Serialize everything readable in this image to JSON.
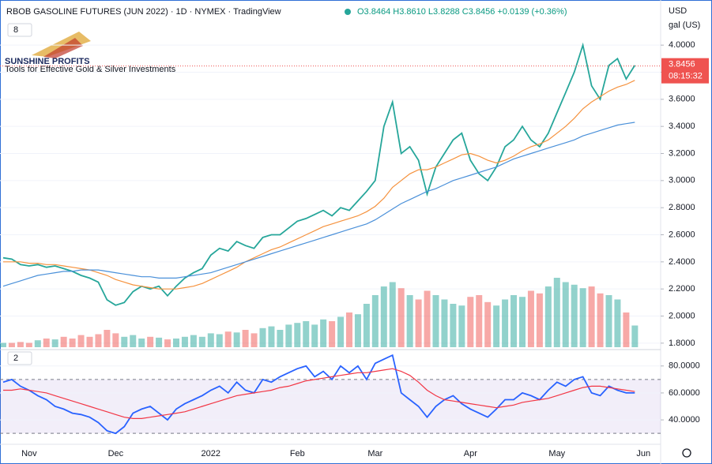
{
  "header": {
    "title": "RBOB GASOLINE FUTURES (JUN 2022) · 1D · NYMEX · TradingView",
    "quote": [
      {
        "value": 3.8464,
        "label": "O3.8464"
      },
      {
        "value": 3.861,
        "label": "H3.8610"
      },
      {
        "value": 3.8288,
        "label": "L3.8288"
      },
      {
        "value": 3.8456,
        "label": "C3.8456"
      },
      {
        "value": 0.0139,
        "label": "+0.0139"
      },
      {
        "value": 0.36,
        "label": "(+0.36%)"
      }
    ],
    "currency": "USD",
    "unit": "gal (US)",
    "logo": {
      "name": "SUNSHINE PROFITS",
      "tagline": "Tools for Effective Gold & Silver Investments"
    }
  },
  "chart_data": [
    {
      "type": "line",
      "indicator_count": 8,
      "categories": [
        null,
        null,
        null,
        "Nov",
        null,
        null,
        null,
        null,
        null,
        null,
        null,
        null,
        null,
        "Dec",
        null,
        null,
        null,
        null,
        null,
        null,
        null,
        null,
        null,
        null,
        "2022",
        null,
        null,
        null,
        null,
        null,
        null,
        null,
        null,
        null,
        "Feb",
        null,
        null,
        null,
        null,
        null,
        null,
        null,
        null,
        "Mar",
        null,
        null,
        null,
        null,
        null,
        null,
        null,
        null,
        null,
        null,
        "Apr",
        null,
        null,
        null,
        null,
        null,
        null,
        null,
        null,
        null,
        "May",
        null,
        null,
        null,
        null,
        null,
        null,
        null,
        null,
        null,
        "Jun"
      ],
      "series": [
        {
          "color": "#26a69a",
          "values": [
            2.43,
            2.42,
            2.38,
            2.37,
            2.38,
            2.36,
            2.37,
            2.35,
            2.33,
            2.3,
            2.28,
            2.25,
            2.12,
            2.08,
            2.1,
            2.18,
            2.22,
            2.2,
            2.22,
            2.15,
            2.22,
            2.28,
            2.32,
            2.35,
            2.45,
            2.5,
            2.48,
            2.55,
            2.52,
            2.5,
            2.58,
            2.6,
            2.6,
            2.65,
            2.7,
            2.72,
            2.75,
            2.78,
            2.74,
            2.8,
            2.78,
            2.85,
            2.92,
            3.0,
            3.4,
            3.58,
            3.2,
            3.25,
            3.15,
            2.9,
            3.1,
            3.2,
            3.3,
            3.35,
            3.15,
            3.05,
            3.0,
            3.1,
            3.25,
            3.3,
            3.4,
            3.3,
            3.25,
            3.35,
            3.5,
            3.65,
            3.8,
            4.0,
            3.7,
            3.6,
            3.85,
            3.9,
            3.75,
            3.85,
            null
          ]
        },
        {
          "color": "#f5923e",
          "values": [
            2.4,
            2.4,
            2.4,
            2.39,
            2.39,
            2.38,
            2.38,
            2.37,
            2.36,
            2.35,
            2.34,
            2.32,
            2.3,
            2.27,
            2.25,
            2.23,
            2.22,
            2.21,
            2.2,
            2.2,
            2.2,
            2.21,
            2.22,
            2.24,
            2.27,
            2.3,
            2.33,
            2.36,
            2.4,
            2.43,
            2.46,
            2.49,
            2.51,
            2.54,
            2.57,
            2.6,
            2.63,
            2.66,
            2.68,
            2.7,
            2.72,
            2.74,
            2.77,
            2.81,
            2.87,
            2.95,
            3.0,
            3.05,
            3.08,
            3.08,
            3.1,
            3.13,
            3.16,
            3.19,
            3.2,
            3.18,
            3.15,
            3.13,
            3.15,
            3.18,
            3.22,
            3.25,
            3.27,
            3.3,
            3.35,
            3.4,
            3.46,
            3.53,
            3.58,
            3.62,
            3.66,
            3.69,
            3.71,
            3.74,
            null
          ]
        },
        {
          "color": "#4a90d9",
          "values": [
            2.22,
            2.24,
            2.26,
            2.28,
            2.3,
            2.31,
            2.32,
            2.33,
            2.33,
            2.34,
            2.34,
            2.34,
            2.33,
            2.32,
            2.31,
            2.3,
            2.29,
            2.29,
            2.28,
            2.28,
            2.28,
            2.29,
            2.3,
            2.31,
            2.32,
            2.34,
            2.36,
            2.38,
            2.4,
            2.42,
            2.44,
            2.46,
            2.48,
            2.5,
            2.52,
            2.54,
            2.56,
            2.58,
            2.6,
            2.62,
            2.64,
            2.66,
            2.68,
            2.71,
            2.75,
            2.79,
            2.83,
            2.86,
            2.89,
            2.92,
            2.94,
            2.97,
            3.0,
            3.02,
            3.04,
            3.06,
            3.08,
            3.1,
            3.13,
            3.16,
            3.18,
            3.2,
            3.22,
            3.24,
            3.26,
            3.28,
            3.3,
            3.33,
            3.35,
            3.37,
            3.39,
            3.41,
            3.42,
            3.43,
            null
          ]
        }
      ],
      "volume": {
        "ylim": [
          0,
          100
        ],
        "values": [
          5,
          5,
          6,
          5,
          8,
          10,
          9,
          12,
          10,
          14,
          12,
          15,
          20,
          16,
          12,
          14,
          10,
          12,
          11,
          9,
          10,
          12,
          14,
          12,
          16,
          15,
          18,
          17,
          20,
          16,
          22,
          24,
          20,
          26,
          28,
          30,
          26,
          32,
          30,
          35,
          40,
          38,
          50,
          60,
          70,
          75,
          68,
          60,
          55,
          65,
          60,
          55,
          50,
          48,
          58,
          60,
          52,
          48,
          55,
          60,
          58,
          65,
          62,
          70,
          80,
          75,
          72,
          68,
          70,
          62,
          60,
          55,
          40,
          25,
          null
        ]
      },
      "ylim": [
        1.77,
        4.1
      ],
      "yticks": [
        {
          "value": 1.8,
          "label": "1.8000"
        },
        {
          "value": 2.0,
          "label": "2.0000"
        },
        {
          "value": 2.2,
          "label": "2.2000"
        },
        {
          "value": 2.4,
          "label": "2.4000"
        },
        {
          "value": 2.6,
          "label": "2.6000"
        },
        {
          "value": 2.8,
          "label": "2.8000"
        },
        {
          "value": 3.0,
          "label": "3.0000"
        },
        {
          "value": 3.2,
          "label": "3.2000"
        },
        {
          "value": 3.4,
          "label": "3.4000"
        },
        {
          "value": 3.6,
          "label": "3.6000"
        },
        {
          "value": 3.8,
          "label": "3.8000"
        },
        {
          "value": 4.0,
          "label": "4.0000"
        }
      ],
      "last_price": {
        "value": 3.8456,
        "label": "3.8456"
      },
      "countdown": "08:15:32"
    },
    {
      "type": "line",
      "indicator_count": 2,
      "series": [
        {
          "color": "#2962ff",
          "values": [
            68,
            70,
            65,
            62,
            58,
            55,
            50,
            48,
            45,
            44,
            42,
            38,
            32,
            30,
            35,
            45,
            48,
            50,
            45,
            40,
            48,
            52,
            55,
            58,
            62,
            65,
            60,
            68,
            62,
            60,
            70,
            68,
            72,
            75,
            78,
            80,
            72,
            76,
            70,
            80,
            75,
            80,
            70,
            82,
            85,
            88,
            60,
            55,
            50,
            42,
            50,
            55,
            58,
            52,
            48,
            45,
            42,
            48,
            55,
            55,
            60,
            58,
            55,
            62,
            68,
            65,
            70,
            72,
            60,
            58,
            65,
            62,
            60,
            60,
            null
          ]
        },
        {
          "color": "#f23645",
          "values": [
            62,
            62,
            63,
            62,
            61,
            60,
            58,
            56,
            54,
            52,
            50,
            48,
            46,
            44,
            42,
            41,
            41,
            42,
            43,
            44,
            45,
            46,
            48,
            50,
            52,
            54,
            56,
            58,
            59,
            60,
            61,
            62,
            64,
            65,
            67,
            69,
            70,
            71,
            72,
            73,
            74,
            75,
            75,
            76,
            77,
            78,
            76,
            73,
            68,
            62,
            58,
            55,
            54,
            53,
            52,
            51,
            50,
            49,
            50,
            51,
            53,
            54,
            55,
            56,
            58,
            60,
            62,
            64,
            65,
            65,
            64,
            63,
            62,
            61,
            null
          ]
        }
      ],
      "ylim": [
        26,
        91
      ],
      "yticks": [
        {
          "value": 40,
          "label": "40.0000"
        },
        {
          "value": 60,
          "label": "60.0000"
        },
        {
          "value": 80,
          "label": "80.0000"
        }
      ],
      "band": [
        30,
        70
      ]
    }
  ]
}
